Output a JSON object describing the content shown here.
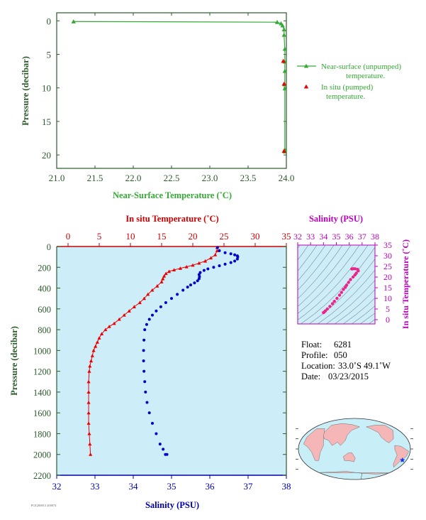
{
  "chart_data": [
    {
      "type": "line",
      "xlabel": "Near-Surface Temperature (˚C)",
      "ylabel": "Pressure (decibar)",
      "xlim": [
        21.0,
        24.0
      ],
      "ylim": [
        22,
        -1.2
      ],
      "x_ticks": [
        "21.0",
        "21.5",
        "22.0",
        "22.5",
        "23.0",
        "23.5",
        "24.0"
      ],
      "y_ticks": [
        "0",
        "5",
        "10",
        "15",
        "20"
      ],
      "grid": false,
      "legend_placement": "right",
      "colors": {
        "unpumped": "#33aa33",
        "pumped": "#ee0000",
        "axis": "#2b5a2b"
      },
      "series": [
        {
          "name": "Near-surface (unpumped) temperature.",
          "marker": "triangle",
          "x": [
            21.22,
            23.88,
            23.93,
            23.95,
            23.97,
            23.97,
            23.98,
            23.98,
            23.98,
            23.98,
            23.98,
            23.98,
            23.98
          ],
          "y": [
            0.1,
            0.2,
            0.4,
            0.7,
            1.3,
            2.1,
            4.2,
            6.1,
            7.5,
            9.5,
            10.1,
            19.2,
            19.5
          ]
        },
        {
          "name": "In situ (pumped) temperature.",
          "marker": "triangle",
          "x": [
            23.96,
            23.97,
            23.97
          ],
          "y": [
            6.0,
            9.4,
            19.4
          ]
        }
      ]
    },
    {
      "type": "scatter",
      "xlabel_top": "In situ Temperature (˚C)",
      "xlabel_bottom": "Salinity (PSU)",
      "ylabel": "Pressure (decibar)",
      "temperature_ticks": [
        "0",
        "5",
        "10",
        "15",
        "20",
        "25",
        "30",
        "35"
      ],
      "salinity_ticks": [
        "32",
        "33",
        "34",
        "35",
        "36",
        "37",
        "38"
      ],
      "pressure_ticks": [
        "0",
        "200",
        "400",
        "600",
        "800",
        "1000",
        "1200",
        "1400",
        "1600",
        "1800",
        "2000",
        "2200"
      ],
      "temperature_range": [
        0,
        35
      ],
      "salinity_range": [
        32,
        38
      ],
      "pressure_range": [
        0,
        2200
      ],
      "colors": {
        "temperature": "#ee0000",
        "salinity": "#0000cc",
        "background": "#cdeef8",
        "axis": "#2b5a2b",
        "temp_axis": "#cc0000",
        "sal_axis": "#0000aa"
      },
      "temperature_profile": {
        "t": [
          23.9,
          23.9,
          23.6,
          22.9,
          22.0,
          21.0,
          20.0,
          19.0,
          18.0,
          17.0,
          16.2,
          15.7,
          15.4,
          15.2,
          15.0,
          14.3,
          13.5,
          12.8,
          12.2,
          11.5,
          10.6,
          9.8,
          9.0,
          8.2,
          7.4,
          6.6,
          6.0,
          5.4,
          5.0,
          4.7,
          4.4,
          4.1,
          3.9,
          3.7,
          3.5,
          3.4,
          3.3,
          3.3,
          3.3,
          3.3,
          3.3,
          3.4,
          3.5,
          3.6
        ],
        "p": [
          10,
          40,
          80,
          110,
          140,
          160,
          180,
          195,
          210,
          225,
          240,
          260,
          285,
          310,
          340,
          380,
          420,
          460,
          500,
          540,
          580,
          620,
          660,
          700,
          740,
          770,
          800,
          840,
          880,
          920,
          960,
          1000,
          1050,
          1100,
          1150,
          1200,
          1300,
          1400,
          1500,
          1600,
          1700,
          1800,
          1900,
          2000
        ]
      },
      "salinity_profile": {
        "s": [
          36.2,
          36.25,
          36.4,
          36.55,
          36.65,
          36.72,
          36.73,
          36.72,
          36.65,
          36.55,
          36.4,
          36.25,
          36.1,
          35.95,
          35.85,
          35.75,
          35.72,
          35.73,
          35.72,
          35.68,
          35.6,
          35.5,
          35.42,
          35.3,
          35.15,
          35.0,
          34.85,
          34.72,
          34.6,
          34.5,
          34.42,
          34.35,
          34.3,
          34.28,
          34.27,
          34.27,
          34.28,
          34.3,
          34.32,
          34.36,
          34.42,
          34.5,
          34.6,
          34.7,
          34.78,
          34.84,
          34.88
        ],
        "p": [
          10,
          40,
          60,
          70,
          80,
          90,
          100,
          120,
          140,
          155,
          170,
          185,
          200,
          215,
          230,
          250,
          270,
          290,
          310,
          330,
          350,
          370,
          390,
          420,
          460,
          500,
          540,
          580,
          620,
          660,
          700,
          750,
          800,
          900,
          1000,
          1100,
          1200,
          1300,
          1400,
          1500,
          1600,
          1700,
          1800,
          1900,
          1950,
          2000,
          2000
        ]
      }
    },
    {
      "type": "scatter",
      "title": "Salinity (PSU)",
      "ylabel": "In situ Temperature (˚C)",
      "salinity_ticks": [
        "32",
        "33",
        "34",
        "35",
        "36",
        "37",
        "38"
      ],
      "temperature_ticks": [
        "0",
        "5",
        "10",
        "15",
        "20",
        "25",
        "30",
        "35"
      ],
      "salinity_range": [
        32,
        38
      ],
      "temperature_range": [
        -2,
        35
      ],
      "colors": {
        "points": "#ee2288",
        "axis": "#bb00bb",
        "contours": "#555577",
        "background": "#cdeef8"
      },
      "points": {
        "s": [
          34.0,
          34.05,
          34.15,
          34.3,
          34.5,
          34.7,
          34.85,
          35.05,
          35.25,
          35.4,
          35.55,
          35.7,
          35.8,
          35.95,
          36.1,
          36.3,
          36.45,
          36.55,
          36.7,
          36.65,
          36.45,
          36.3,
          36.2
        ],
        "t": [
          3.3,
          3.5,
          4.1,
          5.0,
          6.2,
          7.5,
          8.6,
          10.0,
          11.5,
          12.8,
          14.2,
          15.2,
          16.2,
          17.5,
          18.8,
          20.0,
          21.0,
          21.8,
          22.9,
          23.6,
          23.9,
          23.9,
          23.8
        ]
      }
    }
  ],
  "info": {
    "float_label": "Float:",
    "float_value": "6281",
    "profile_label": "Profile:",
    "profile_value": "050",
    "location_label": "Location:",
    "location_value": "33.0˚S  49.1˚W",
    "date_label": "Date:",
    "date_value": "03/23/2015"
  },
  "map": {
    "marker": "star",
    "marker_lat": -33.0,
    "marker_lon": -49.1,
    "land_color": "#f4b6b6",
    "ocean_color": "#c8eef8"
  },
  "footnote": "PCE200813 200074"
}
